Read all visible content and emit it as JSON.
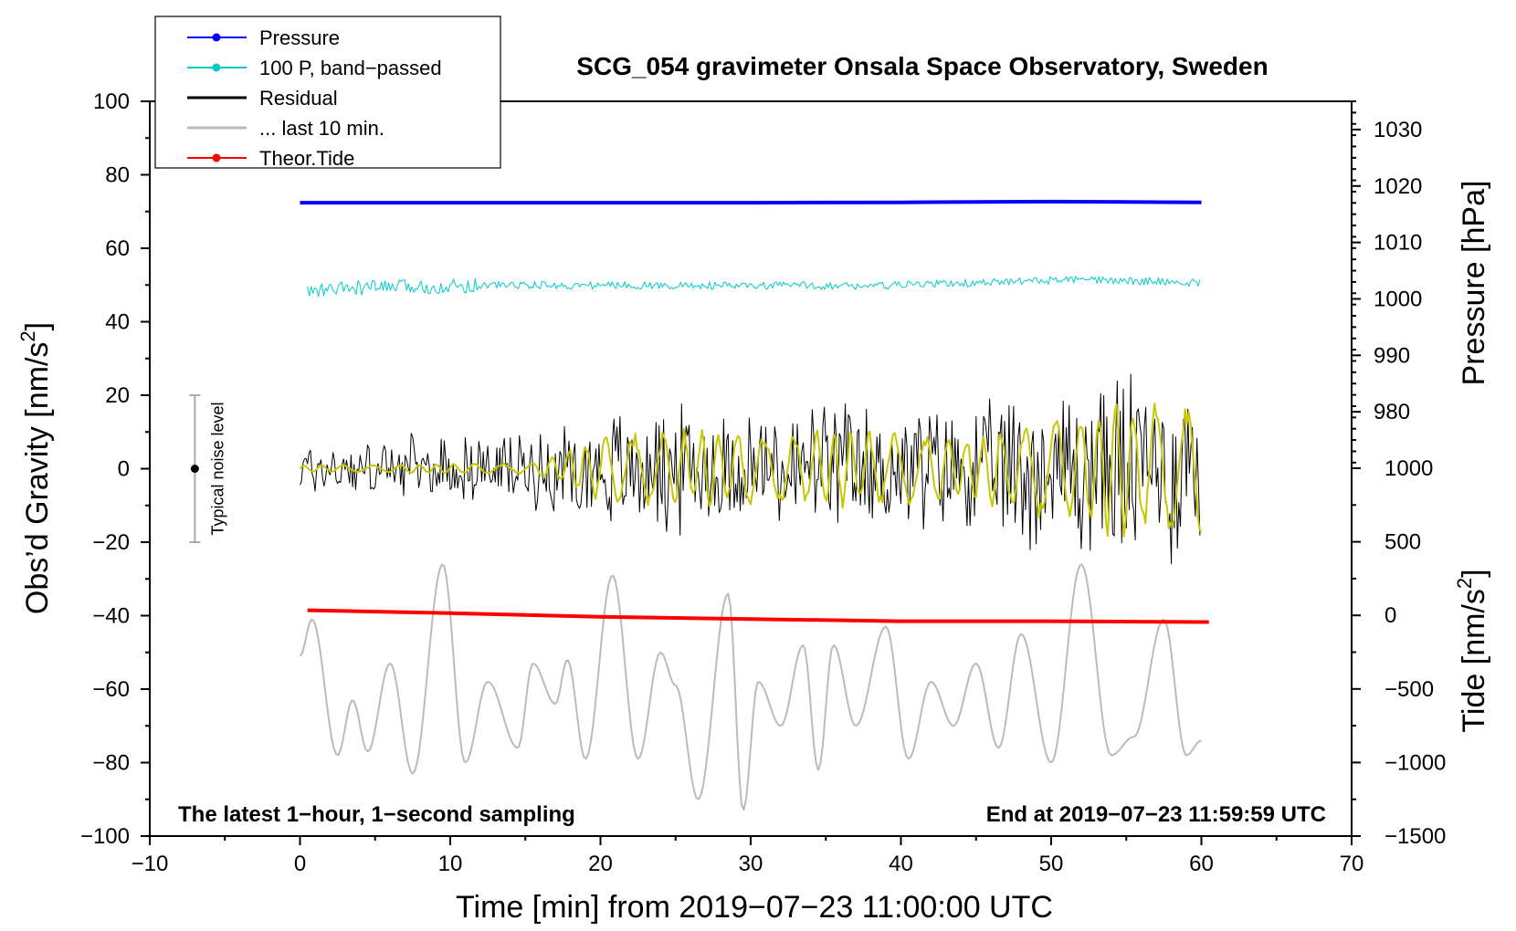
{
  "chart_data": {
    "type": "line",
    "title": "SCG_054 gravimeter Onsala Space Observatory, Sweden",
    "xlabel": "Time [min] from 2019−07−23 11:00:00 UTC",
    "ylabel_main": "Obs’d Gravity [nm/s",
    "ylabel_main_sup": "2",
    "ylabel_main_end": "]",
    "ylabel_pressure": "Pressure [hPa]",
    "ylabel_tide": "Tide [nm/s",
    "ylabel_tide_sup": "2",
    "ylabel_tide_end": "]",
    "xlim": [
      -10,
      70
    ],
    "ylim": [
      -100,
      100
    ],
    "pressure_ylim": [
      970,
      1035
    ],
    "tide_ylim": [
      -1500,
      1000
    ],
    "x_ticks": [
      -10,
      0,
      10,
      20,
      30,
      40,
      50,
      60,
      70
    ],
    "x_tick_labels": [
      "−10",
      "0",
      "10",
      "20",
      "30",
      "40",
      "50",
      "60",
      "70"
    ],
    "y_ticks": [
      -100,
      -80,
      -60,
      -40,
      -20,
      0,
      20,
      40,
      60,
      80,
      100
    ],
    "y_tick_labels": [
      "−100",
      "−80",
      "−60",
      "−40",
      "−20",
      "0",
      "20",
      "40",
      "60",
      "80",
      "100"
    ],
    "pressure_ticks": [
      980,
      990,
      1000,
      1010,
      1020,
      1030
    ],
    "pressure_tick_labels": [
      "980",
      "990",
      "1000",
      "1010",
      "1020",
      "1030"
    ],
    "tide_ticks": [
      -1500,
      -1000,
      -500,
      0,
      500,
      1000
    ],
    "tide_tick_labels": [
      "−1500",
      "−1000",
      "−500",
      "0",
      "500",
      "1000"
    ],
    "note_left": "The latest 1−hour, 1−second sampling",
    "note_right": "End at 2019−07−23 11:59:59 UTC",
    "noise_label": "Typical noise level",
    "noise_bar": {
      "x": -7,
      "center": 0,
      "half_range": 20
    },
    "legend": [
      {
        "label": "Pressure",
        "color": "#0000ff",
        "marker": true,
        "width": 1
      },
      {
        "label": "100 P, band−passed",
        "color": "#00cccc",
        "marker": true,
        "width": 1
      },
      {
        "label": "Residual",
        "color": "#000000",
        "marker": false,
        "width": 2
      },
      {
        "label": "... last 10 min.",
        "color": "#bbbbbb",
        "marker": false,
        "width": 2
      },
      {
        "label": "Theor.Tide",
        "color": "#ff0000",
        "marker": true,
        "width": 1
      }
    ],
    "series": [
      {
        "name": "Pressure",
        "color": "#0000ff",
        "axis": "main",
        "x": [
          0,
          10,
          20,
          30,
          40,
          45,
          50,
          55,
          60
        ],
        "values": [
          72.4,
          72.4,
          72.4,
          72.4,
          72.5,
          72.6,
          72.7,
          72.6,
          72.5
        ]
      },
      {
        "name": "100 P, band-passed",
        "color": "#00cccc",
        "axis": "main",
        "x": [
          0,
          3,
          6,
          9,
          12,
          15,
          18,
          21,
          24,
          27,
          30,
          33,
          36,
          39,
          42,
          45,
          48,
          51,
          54,
          57,
          60
        ],
        "values": [
          48.0,
          49.0,
          49.5,
          49.5,
          50.0,
          50.0,
          49.8,
          50.0,
          49.8,
          49.8,
          49.7,
          50.0,
          49.7,
          49.8,
          50.3,
          50.5,
          51.0,
          51.4,
          51.2,
          51.0,
          50.5
        ],
        "noise": 1.5
      },
      {
        "name": "Residual",
        "color": "#000000",
        "axis": "main",
        "x": [
          0,
          5,
          10,
          15,
          20,
          25,
          30,
          35,
          40,
          45,
          50,
          55,
          60
        ],
        "amplitude": [
          6,
          7,
          7,
          8,
          12,
          14,
          13,
          14,
          13,
          13,
          18,
          22,
          20
        ]
      },
      {
        "name": "Residual filtered",
        "color": "#c8c800",
        "axis": "main",
        "x": [
          0,
          5,
          10,
          15,
          17,
          20,
          25,
          30,
          35,
          40,
          45,
          50,
          55,
          60
        ],
        "amplitude": [
          1,
          1,
          1.5,
          1.5,
          4,
          10,
          11,
          11,
          11,
          10,
          10,
          15,
          20,
          18
        ]
      },
      {
        "name": "... last 10 min.",
        "color": "#bbbbbb",
        "axis": "main",
        "x": [
          0,
          0.8,
          2.5,
          3.5,
          4.5,
          6.0,
          7.5,
          9.5,
          11.0,
          12.5,
          14.5,
          15.5,
          17.0,
          17.8,
          19.0,
          20.8,
          22.5,
          24.0,
          25.0,
          26.5,
          28.5,
          29.5,
          30.5,
          32.0,
          33.5,
          34.5,
          35.5,
          37.0,
          39.0,
          40.5,
          42.0,
          43.5,
          45.0,
          46.5,
          48.0,
          50.0,
          52.0,
          54.0,
          55.5,
          57.5,
          59.0,
          60.0
        ],
        "values": [
          -51,
          -41,
          -78,
          -63,
          -77,
          -53,
          -83,
          -26,
          -80,
          -58,
          -76,
          -53,
          -64,
          -52,
          -79,
          -29,
          -79,
          -50,
          -59,
          -90,
          -34,
          -93,
          -58,
          -70,
          -48,
          -82,
          -48,
          -70,
          -43,
          -79,
          -58,
          -70,
          -53,
          -76,
          -45,
          -80,
          -26,
          -78,
          -73,
          -41,
          -78,
          -74
        ]
      },
      {
        "name": "Theor.Tide",
        "color": "#ff0000",
        "axis": "tide",
        "x": [
          0.5,
          10,
          20,
          30,
          40,
          50,
          60.5
        ],
        "values": [
          35,
          15,
          -10,
          -25,
          -40,
          -40,
          -45
        ]
      }
    ]
  }
}
